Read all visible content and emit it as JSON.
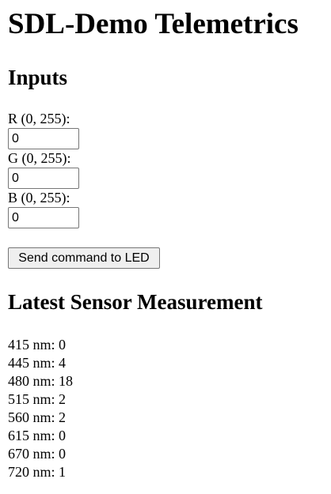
{
  "page": {
    "title": "SDL-Demo Telemetrics"
  },
  "inputs": {
    "heading": "Inputs",
    "r": {
      "label": "R (0, 255):",
      "value": "0"
    },
    "g": {
      "label": "G (0, 255):",
      "value": "0"
    },
    "b": {
      "label": "B (0, 255):",
      "value": "0"
    },
    "send_label": "Send command to LED"
  },
  "sensor": {
    "heading": "Latest Sensor Measurement",
    "measurements": [
      {
        "wavelength": "415 nm",
        "value": "0"
      },
      {
        "wavelength": "445 nm",
        "value": "4"
      },
      {
        "wavelength": "480 nm",
        "value": "18"
      },
      {
        "wavelength": "515 nm",
        "value": "2"
      },
      {
        "wavelength": "560 nm",
        "value": "2"
      },
      {
        "wavelength": "615 nm",
        "value": "0"
      },
      {
        "wavelength": "670 nm",
        "value": "0"
      },
      {
        "wavelength": "720 nm",
        "value": "1"
      }
    ]
  }
}
